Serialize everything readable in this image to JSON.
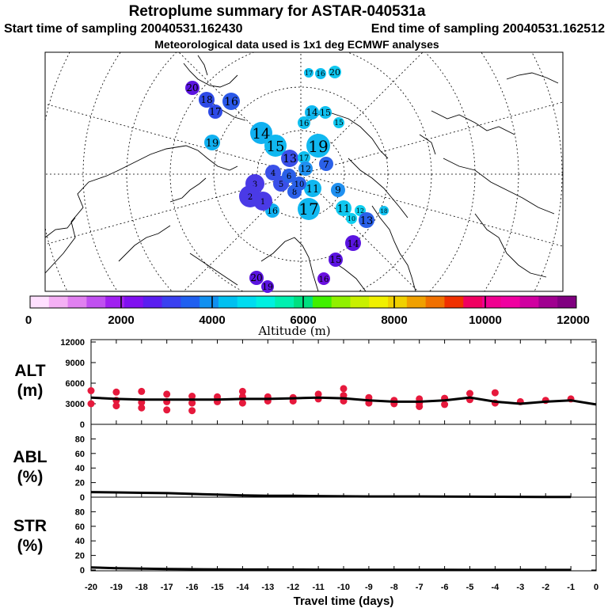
{
  "header": {
    "title": "Retroplume summary for ASTAR-040531a",
    "start_sampling": "Start time of sampling 20040531.162430",
    "end_sampling": "End time of sampling 20040531.162512",
    "met_data": "Meteorological data used is 1x1 deg ECMWF analyses"
  },
  "colorbar": {
    "axis_title": "Altitude (m)",
    "tick_labels": [
      "0",
      "2000",
      "4000",
      "6000",
      "8000",
      "10000",
      "12000"
    ],
    "colors": [
      "#ffe0ff",
      "#f4b0f4",
      "#e080f0",
      "#c050f0",
      "#a020f0",
      "#8010f0",
      "#5a1ef0",
      "#3a40f0",
      "#2060f0",
      "#1090f0",
      "#00c0f0",
      "#00dcf0",
      "#00f0e0",
      "#00f0b0",
      "#00e080",
      "#40f000",
      "#90f000",
      "#c8f000",
      "#f0f000",
      "#f0d000",
      "#f0a000",
      "#f07000",
      "#f03000",
      "#f00060",
      "#f00090",
      "#f000a0",
      "#d000a0",
      "#a00090",
      "#800080"
    ]
  },
  "map_points": [
    {
      "label": "20",
      "color": "#5a14e0"
    },
    {
      "label": "18",
      "color": "#2e4ae6"
    },
    {
      "label": "17",
      "color": "#2e4ae6"
    },
    {
      "label": "16",
      "color": "#2a58e8"
    },
    {
      "label": "19",
      "color": "#10b0f0"
    },
    {
      "label": "17",
      "color": "#10c0f0"
    },
    {
      "label": "16",
      "color": "#10c0f0"
    },
    {
      "label": "20",
      "color": "#10c8f0"
    },
    {
      "label": "14",
      "color": "#10b8f0"
    },
    {
      "label": "15",
      "color": "#10c0f0"
    },
    {
      "label": "16",
      "color": "#10c0f0"
    },
    {
      "label": "15",
      "color": "#10c8f0"
    },
    {
      "label": "14",
      "color": "#10b0f0"
    },
    {
      "label": "15",
      "color": "#10b8f0"
    },
    {
      "label": "19",
      "color": "#10b8f0"
    },
    {
      "label": "13",
      "color": "#3a50e8"
    },
    {
      "label": "17",
      "color": "#10c0f0"
    },
    {
      "label": "12",
      "color": "#2090f0"
    },
    {
      "label": "9",
      "color": "#2090f0"
    },
    {
      "label": "11",
      "color": "#10b8f0"
    },
    {
      "label": "17",
      "color": "#10b8f0"
    },
    {
      "label": "11",
      "color": "#10c8f0"
    },
    {
      "label": "10",
      "color": "#10d0f0"
    },
    {
      "label": "12",
      "color": "#10d0f0"
    },
    {
      "label": "13",
      "color": "#2a60e8"
    },
    {
      "label": "18",
      "color": "#10c0f0"
    },
    {
      "label": "14",
      "color": "#5a14e0"
    },
    {
      "label": "15",
      "color": "#5a14e0"
    },
    {
      "label": "16",
      "color": "#6a10e0"
    },
    {
      "label": "20",
      "color": "#5a14e0"
    },
    {
      "label": "19",
      "color": "#5a14e0"
    },
    {
      "label": "16",
      "color": "#10b0f0"
    },
    {
      "label": "4",
      "color": "#3a50e8"
    },
    {
      "label": "5",
      "color": "#3a50e8"
    },
    {
      "label": "6",
      "color": "#2a60e8"
    },
    {
      "label": "7",
      "color": "#2a60e8"
    },
    {
      "label": "8",
      "color": "#2a60e8"
    },
    {
      "label": "10",
      "color": "#2a60e8"
    },
    {
      "label": "3",
      "color": "#4a3ae6"
    },
    {
      "label": "2",
      "color": "#4a3ae6"
    },
    {
      "label": "1",
      "color": "#4a3ae6"
    }
  ],
  "chart_data": [
    {
      "type": "line",
      "title": "ALT",
      "ylabel": "ALT (m)",
      "ylabel_top": "ALT",
      "ylabel_bottom": "(m)",
      "xlabel": "Travel time (days)",
      "xlim": [
        -20,
        0
      ],
      "ylim": [
        0,
        12000
      ],
      "yticks": [
        "0",
        "3000",
        "6000",
        "9000",
        "12000"
      ],
      "xticks": [
        "-20",
        "-19",
        "-18",
        "-17",
        "-16",
        "-15",
        "-14",
        "-13",
        "-12",
        "-11",
        "-10",
        "-9",
        "-8",
        "-7",
        "-6",
        "-5",
        "-4",
        "-3",
        "-2",
        "-1",
        "0"
      ],
      "line_color": "#000000",
      "marker_color": "#e6193c",
      "series": [
        {
          "name": "mean altitude",
          "x": [
            -20,
            -19,
            -18,
            -17,
            -16,
            -15,
            -14,
            -13,
            -12,
            -11,
            -10,
            -9,
            -8,
            -7,
            -6,
            -5,
            -4,
            -3,
            -2,
            -1,
            0
          ],
          "y": [
            3900,
            3700,
            3600,
            3600,
            3600,
            3600,
            3700,
            3700,
            3800,
            3900,
            3800,
            3500,
            3300,
            3300,
            3500,
            3900,
            3300,
            3000,
            3300,
            3500,
            2900
          ]
        },
        {
          "name": "cluster altitudes",
          "x": [
            -20,
            -20,
            -19,
            -19,
            -19,
            -18,
            -18,
            -18,
            -17,
            -17,
            -17,
            -16,
            -16,
            -16,
            -15,
            -15,
            -14,
            -14,
            -14,
            -13,
            -13,
            -12,
            -12,
            -11,
            -11,
            -10,
            -10,
            -10,
            -9,
            -9,
            -8,
            -8,
            -7,
            -7,
            -7,
            -6,
            -6,
            -5,
            -5,
            -4,
            -4,
            -3,
            -2,
            -1
          ],
          "y": [
            4900,
            3000,
            4700,
            3500,
            2700,
            4800,
            3200,
            2400,
            4400,
            3300,
            2100,
            4100,
            3100,
            2000,
            4000,
            3300,
            4800,
            4000,
            3100,
            4000,
            3400,
            3900,
            3400,
            4400,
            3700,
            5200,
            4200,
            3400,
            3900,
            3100,
            3500,
            3000,
            3700,
            3100,
            2600,
            3800,
            2900,
            4500,
            3600,
            4600,
            3100,
            3300,
            3500,
            3700
          ]
        }
      ]
    },
    {
      "type": "line",
      "title": "ABL",
      "ylabel": "ABL (%)",
      "ylabel_top": "ABL",
      "ylabel_bottom": "(%)",
      "xlim": [
        -20,
        0
      ],
      "ylim": [
        0,
        100
      ],
      "yticks": [
        "0",
        "20",
        "40",
        "60",
        "80"
      ],
      "series": [
        {
          "name": "ABL fraction",
          "x": [
            -20,
            -19,
            -18,
            -17,
            -16,
            -15,
            -14,
            -13,
            -12,
            -11,
            -10,
            -9,
            -8,
            -7,
            -6,
            -5,
            -4,
            -3,
            -2,
            -1
          ],
          "y": [
            7,
            6.5,
            6,
            5.5,
            4.5,
            3.5,
            2.5,
            2,
            1.8,
            1.5,
            1.2,
            1,
            1,
            1,
            0.8,
            0.6,
            0.5,
            0.4,
            0.3,
            0.2
          ]
        }
      ]
    },
    {
      "type": "line",
      "title": "STR",
      "ylabel": "STR (%)",
      "ylabel_top": "STR",
      "ylabel_bottom": "(%)",
      "xlim": [
        -20,
        0
      ],
      "ylim": [
        0,
        100
      ],
      "yticks": [
        "0",
        "20",
        "40",
        "60",
        "80"
      ],
      "series": [
        {
          "name": "STR fraction",
          "x": [
            -20,
            -19,
            -18,
            -17,
            -16,
            -15,
            -14,
            -13,
            -12,
            -11,
            -10,
            -9,
            -8,
            -7,
            -6,
            -5,
            -4,
            -3,
            -2,
            -1
          ],
          "y": [
            3.5,
            2.5,
            1.8,
            1.4,
            1.1,
            0.9,
            0.7,
            0.6,
            0.5,
            0.4,
            0.3,
            0.3,
            0.2,
            0.2,
            0.2,
            0.1,
            0.1,
            0.1,
            0.1,
            0.1
          ]
        }
      ]
    }
  ]
}
